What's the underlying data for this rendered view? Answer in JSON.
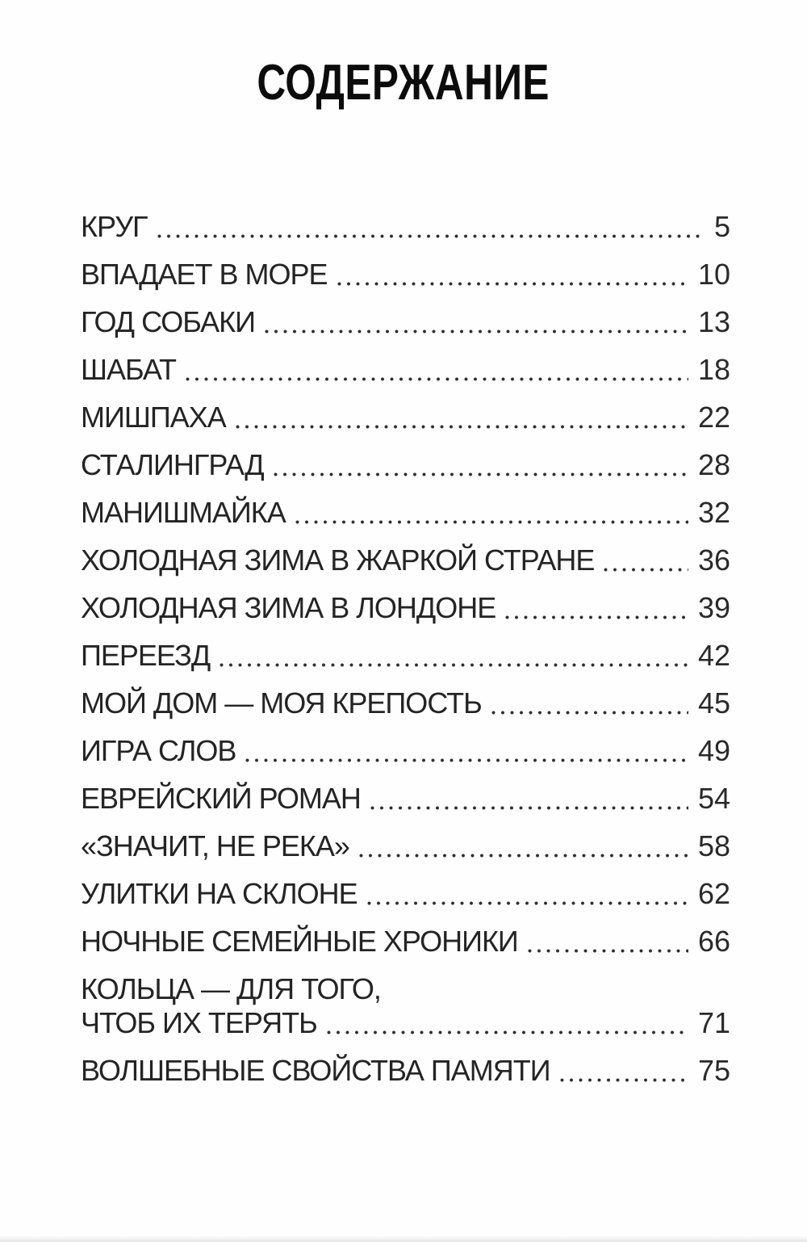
{
  "document": {
    "title": "СОДЕРЖАНИЕ",
    "entries": [
      {
        "label": "КРУГ",
        "page": "5"
      },
      {
        "label": "ВПАДАЕТ В МОРЕ",
        "page": "10"
      },
      {
        "label": "ГОД СОБАКИ",
        "page": "13"
      },
      {
        "label": "ШАБАТ",
        "page": "18"
      },
      {
        "label": "МИШПАХА",
        "page": "22"
      },
      {
        "label": "СТАЛИНГРАД",
        "page": "28"
      },
      {
        "label": "МАНИШМАЙКА",
        "page": "32"
      },
      {
        "label": "ХОЛОДНАЯ ЗИМА В ЖАРКОЙ СТРАНЕ",
        "page": "36"
      },
      {
        "label": "ХОЛОДНАЯ ЗИМА В ЛОНДОНЕ",
        "page": "39"
      },
      {
        "label": "ПЕРЕЕЗД",
        "page": "42"
      },
      {
        "label": "МОЙ ДОМ — МОЯ КРЕПОСТЬ",
        "page": "45"
      },
      {
        "label": "ИГРА СЛОВ",
        "page": "49"
      },
      {
        "label": "ЕВРЕЙСКИЙ РОМАН",
        "page": "54"
      },
      {
        "label": "«ЗНАЧИТ, НЕ РЕКА»",
        "page": "58"
      },
      {
        "label": "УЛИТКИ НА СКЛОНЕ",
        "page": "62"
      },
      {
        "label": "НОЧНЫЕ СЕМЕЙНЫЕ ХРОНИКИ",
        "page": "66"
      },
      {
        "label": "КОЛЬЦА — ДЛЯ ТОГО,",
        "label_line2": "ЧТОБ ИХ ТЕРЯТЬ",
        "page": "71"
      },
      {
        "label": "ВОЛШЕБНЫЕ СВОЙСТВА ПАМЯТИ",
        "page": "75"
      }
    ]
  }
}
